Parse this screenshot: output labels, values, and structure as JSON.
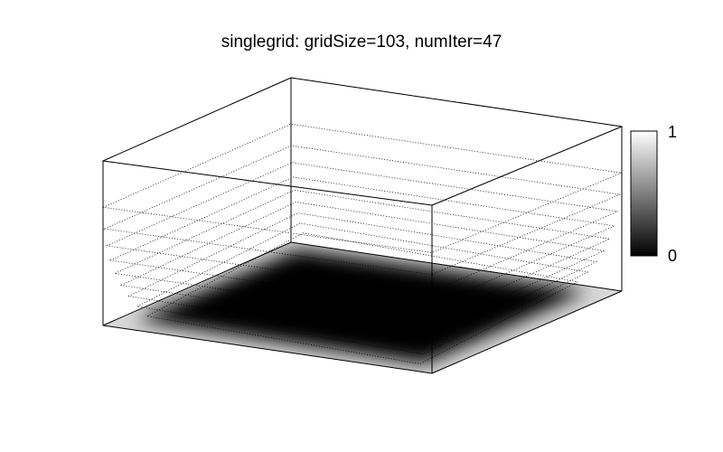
{
  "chart_data": {
    "type": "surface",
    "title": "singlegrid: gridSize=103, numIter=47",
    "xlabel": "",
    "ylabel": "",
    "zlim": [
      0,
      1
    ],
    "colormap": "gray",
    "colorbar": {
      "ticks": [
        "0",
        "1"
      ],
      "placement": "right"
    },
    "grid": false,
    "surface_description_values": {
      "boundary_value": 1,
      "interior_value": 0,
      "contour_levels": [
        0.1,
        0.2,
        0.3,
        0.4,
        0.5,
        0.6,
        0.7,
        0.8,
        0.9,
        1.0
      ]
    }
  }
}
